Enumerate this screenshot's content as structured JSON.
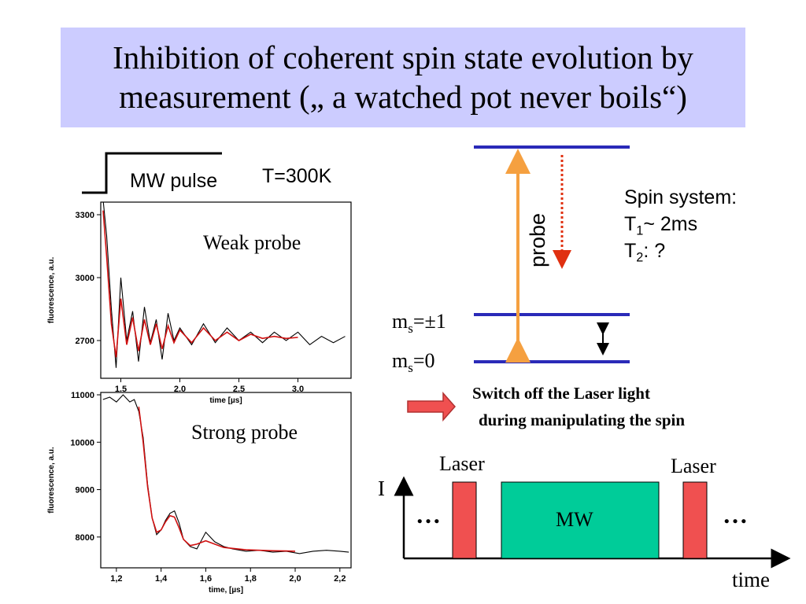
{
  "title": {
    "line1": "Inhibition of coherent spin state evolution by",
    "line2": "measurement („ a watched pot never boils“)"
  },
  "mw_pulse_label": "MW pulse",
  "temperature_label": "T=300K",
  "colors": {
    "title_bg": "#ccccff",
    "level_line": "#2a2ab8",
    "probe_arrow": "#f5a040",
    "decay_arrow": "#e03010",
    "laser_block": "#f05050",
    "mw_block": "#00cc99",
    "fit_curve": "#d01010"
  },
  "energy_diagram": {
    "probe_label": "probe",
    "ms_pm1_prefix": "m",
    "ms_pm1_sub": "s",
    "ms_pm1_suffix": "=±1",
    "ms_0_prefix": "m",
    "ms_0_sub": "s",
    "ms_0_suffix": "=0"
  },
  "spin_system": {
    "heading": "Spin system:",
    "t1_prefix": "T",
    "t1_sub": "1",
    "t1_suffix": "~ 2ms",
    "t2_prefix": "T",
    "t2_sub": "2",
    "t2_suffix": ": ?"
  },
  "switch_note": {
    "line1": "Switch off the Laser light",
    "line2": "during manipulating the spin"
  },
  "timing_diagram": {
    "laser_left_label": "Laser",
    "laser_right_label": "Laser",
    "mw_label": "MW",
    "y_axis_label": "I",
    "x_axis_label": "time",
    "ellipsis_left": "…",
    "ellipsis_right": "…"
  },
  "chart_data": [
    {
      "type": "line",
      "annotation": "Weak probe",
      "xlabel": "time [µs]",
      "ylabel": "fluorescence, a.u.",
      "xlim": [
        1.33,
        3.45
      ],
      "ylim": [
        2520,
        3360
      ],
      "x_ticks": [
        "1.5",
        "2.0",
        "2.5",
        "3.0"
      ],
      "x_tick_values": [
        1.5,
        2.0,
        2.5,
        3.0
      ],
      "y_ticks": [
        "3300",
        "3000",
        "2700"
      ],
      "y_tick_values": [
        3300,
        3000,
        2700
      ],
      "series": [
        {
          "role": "measured",
          "x": [
            1.35,
            1.38,
            1.42,
            1.46,
            1.5,
            1.55,
            1.6,
            1.65,
            1.7,
            1.75,
            1.8,
            1.85,
            1.9,
            1.95,
            2.0,
            2.1,
            2.2,
            2.3,
            2.4,
            2.5,
            2.6,
            2.7,
            2.8,
            2.9,
            3.0,
            3.1,
            3.2,
            3.3,
            3.4
          ],
          "y": [
            3370,
            3200,
            2850,
            2570,
            3000,
            2700,
            2840,
            2600,
            2860,
            2690,
            2800,
            2610,
            2830,
            2700,
            2760,
            2680,
            2780,
            2690,
            2760,
            2700,
            2740,
            2690,
            2740,
            2700,
            2740,
            2680,
            2720,
            2690,
            2720
          ]
        },
        {
          "role": "fit",
          "x": [
            1.35,
            1.38,
            1.42,
            1.46,
            1.5,
            1.55,
            1.6,
            1.65,
            1.7,
            1.75,
            1.8,
            1.85,
            1.9,
            1.95,
            2.0,
            2.1,
            2.2,
            2.3,
            2.4,
            2.5,
            2.6,
            2.7,
            2.8,
            2.9,
            3.0
          ],
          "y": [
            3320,
            3100,
            2780,
            2620,
            2900,
            2680,
            2810,
            2650,
            2800,
            2680,
            2780,
            2660,
            2770,
            2690,
            2750,
            2690,
            2760,
            2700,
            2740,
            2700,
            2730,
            2710,
            2720,
            2710,
            2715
          ]
        }
      ]
    },
    {
      "type": "line",
      "annotation": "Strong probe",
      "xlabel": "time, [µs]",
      "ylabel": "fluorescence, a.u.",
      "xlim": [
        1.13,
        2.25
      ],
      "ylim": [
        7350,
        11050
      ],
      "x_ticks": [
        "1,2",
        "1,4",
        "1,6",
        "1,8",
        "2,0",
        "2,2"
      ],
      "x_tick_values": [
        1.2,
        1.4,
        1.6,
        1.8,
        2.0,
        2.2
      ],
      "y_ticks": [
        "11000",
        "10000",
        "9000",
        "8000"
      ],
      "y_tick_values": [
        11000,
        10000,
        9000,
        8000
      ],
      "series": [
        {
          "role": "measured",
          "x": [
            1.14,
            1.17,
            1.2,
            1.23,
            1.26,
            1.28,
            1.3,
            1.32,
            1.34,
            1.36,
            1.38,
            1.4,
            1.42,
            1.44,
            1.46,
            1.48,
            1.5,
            1.53,
            1.56,
            1.6,
            1.64,
            1.68,
            1.72,
            1.78,
            1.84,
            1.9,
            1.96,
            2.02,
            2.08,
            2.14,
            2.2,
            2.24
          ],
          "y": [
            10900,
            10950,
            10850,
            11000,
            10850,
            10900,
            10650,
            10100,
            9100,
            8400,
            8050,
            8150,
            8350,
            8500,
            8550,
            8300,
            7950,
            7800,
            7750,
            8100,
            7900,
            7800,
            7750,
            7700,
            7720,
            7680,
            7700,
            7650,
            7700,
            7720,
            7700,
            7680
          ]
        },
        {
          "role": "fit",
          "x": [
            1.3,
            1.32,
            1.34,
            1.36,
            1.38,
            1.4,
            1.42,
            1.44,
            1.46,
            1.48,
            1.5,
            1.53,
            1.56,
            1.6,
            1.64,
            1.68,
            1.72,
            1.78,
            1.84,
            1.9,
            1.96,
            2.0
          ],
          "y": [
            10750,
            10000,
            9050,
            8400,
            8100,
            8150,
            8320,
            8450,
            8420,
            8200,
            7950,
            7820,
            7850,
            7920,
            7850,
            7780,
            7760,
            7730,
            7720,
            7710,
            7705,
            7700
          ]
        }
      ]
    }
  ]
}
